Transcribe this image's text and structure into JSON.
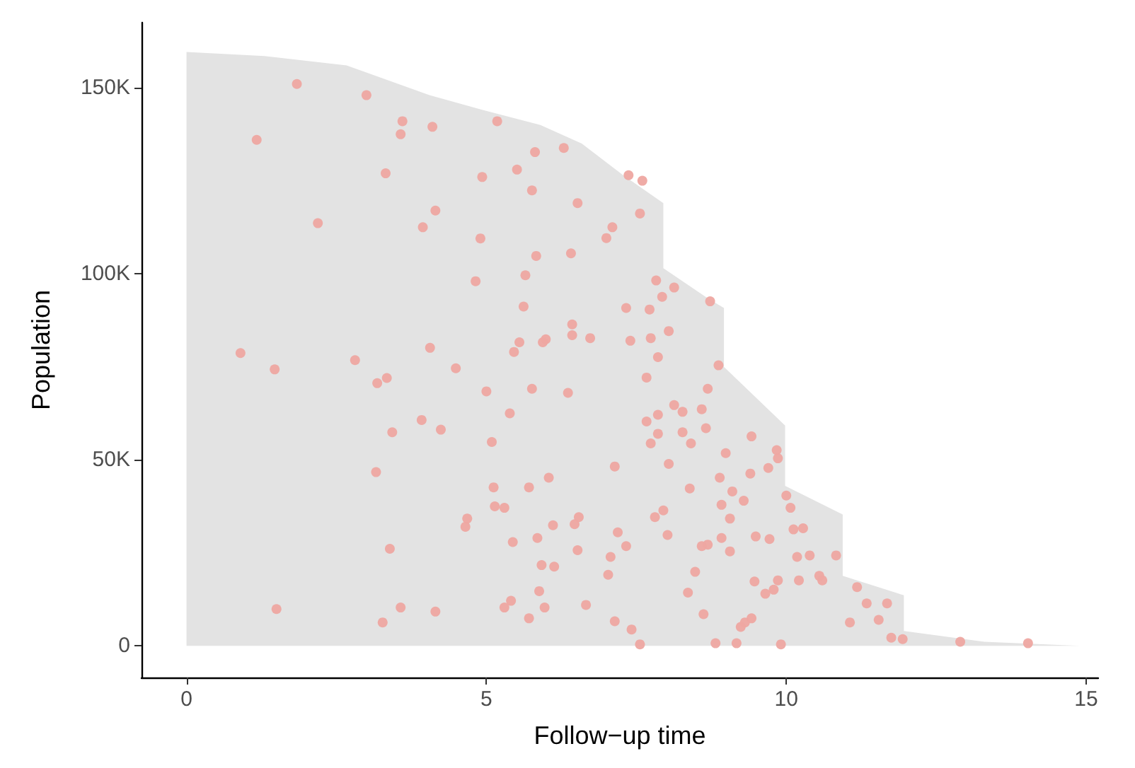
{
  "chart_data": {
    "type": "scatter",
    "xlabel": "Follow−up time",
    "ylabel": "Population",
    "xlim": [
      -0.75,
      15.2
    ],
    "ylim": [
      -8500,
      167500
    ],
    "xticks": [
      0,
      5,
      10,
      15
    ],
    "yticks": [
      0,
      {
        "value": 50000,
        "label": "50K"
      },
      {
        "value": 100000,
        "label": "100K"
      },
      {
        "value": 150000,
        "label": "150K"
      }
    ],
    "grid": false,
    "series": [
      {
        "type": "area",
        "color": "#e3e3e3",
        "x": [
          0,
          1.3,
          2.67,
          4.05,
          4.95,
          5.9,
          6.59,
          7.28,
          7.95,
          7.95,
          8.69,
          8.96,
          8.96,
          9.98,
          9.98,
          10.94,
          10.94,
          11.96,
          11.96,
          13.3,
          14.9
        ],
        "values": [
          159600,
          158500,
          156000,
          148000,
          144000,
          140000,
          135000,
          126500,
          119000,
          101500,
          93400,
          90800,
          75000,
          59200,
          43000,
          35300,
          18800,
          13600,
          4000,
          1100,
          0
        ]
      },
      {
        "color": "#eea7a1",
        "marker": "circle",
        "x": [
          1.84,
          3.0,
          1.17,
          3.6,
          3.57,
          4.1,
          5.18,
          3.32,
          4.93,
          4.15,
          3.94,
          4.9,
          4.82,
          2.19,
          0.9,
          1.47,
          2.81,
          4.06,
          4.49,
          3.18,
          3.34,
          5.0,
          3.92,
          4.24,
          3.43,
          5.09,
          3.16,
          5.12,
          5.14,
          4.68,
          4.65,
          3.39,
          1.5,
          3.57,
          4.15,
          3.27,
          5.81,
          6.29,
          5.51,
          5.76,
          7.37,
          7.6,
          6.52,
          7.56,
          7.1,
          7.0,
          5.83,
          6.41,
          5.65,
          7.83,
          8.13,
          7.93,
          8.73,
          5.62,
          7.33,
          7.72,
          6.43,
          6.43,
          8.04,
          5.55,
          5.99,
          5.94,
          6.73,
          7.4,
          7.74,
          5.46,
          7.86,
          8.87,
          7.67,
          8.69,
          5.76,
          6.36,
          8.13,
          8.27,
          8.59,
          5.39,
          7.86,
          7.67,
          7.86,
          8.27,
          8.66,
          7.74,
          8.41,
          8.99,
          7.14,
          8.04,
          8.89,
          6.04,
          5.71,
          8.39,
          9.1,
          8.92,
          9.29,
          5.3,
          9.06,
          6.54,
          6.47,
          6.11,
          7.81,
          7.95,
          7.19,
          8.02,
          8.92,
          8.59,
          8.69,
          9.06,
          5.44,
          5.85,
          6.52,
          7.33,
          7.07,
          5.92,
          6.13,
          7.03,
          8.48,
          5.88,
          8.36,
          5.41,
          5.3,
          5.97,
          6.66,
          8.62,
          5.71,
          7.14,
          7.42,
          7.56,
          8.82,
          9.17,
          9.24,
          9.31,
          9.42,
          9.84,
          9.86,
          9.7,
          9.4,
          10.0,
          10.07,
          10.12,
          10.28,
          9.49,
          9.72,
          10.18,
          10.39,
          10.83,
          9.47,
          9.86,
          10.21,
          10.55,
          10.6,
          9.65,
          9.79,
          11.18,
          11.34,
          11.68,
          11.06,
          11.54,
          11.75,
          11.94,
          9.42,
          9.91,
          12.9,
          14.03
        ],
        "values": [
          151000,
          148000,
          136000,
          141000,
          137500,
          139500,
          141000,
          127000,
          126000,
          117000,
          112500,
          109500,
          98000,
          113600,
          78700,
          74300,
          76800,
          80100,
          74600,
          70600,
          72000,
          68400,
          60700,
          58100,
          57400,
          54800,
          46700,
          42600,
          37500,
          34200,
          32000,
          26100,
          9900,
          10300,
          9200,
          6300,
          132700,
          133800,
          128000,
          122400,
          126500,
          125000,
          119000,
          116200,
          112500,
          109600,
          104800,
          105500,
          99600,
          98200,
          96300,
          93800,
          92600,
          91200,
          90800,
          90400,
          86400,
          83500,
          84600,
          81600,
          82400,
          81600,
          82700,
          82000,
          82700,
          79000,
          77600,
          75400,
          72100,
          69100,
          69100,
          68000,
          64700,
          62900,
          63600,
          62500,
          62100,
          60300,
          57000,
          57400,
          58500,
          54400,
          54400,
          51800,
          48200,
          48900,
          45200,
          45200,
          42600,
          42300,
          41500,
          37900,
          39000,
          37100,
          34200,
          34600,
          32700,
          32400,
          34600,
          36400,
          30500,
          29800,
          29000,
          26800,
          27200,
          25400,
          27900,
          29000,
          25700,
          26800,
          23900,
          21700,
          21300,
          19100,
          19900,
          14700,
          14300,
          12100,
          10300,
          10300,
          11000,
          8500,
          7400,
          6600,
          4400,
          400,
          700,
          700,
          5100,
          6300,
          56300,
          52600,
          50400,
          47800,
          46300,
          40400,
          37100,
          31300,
          31600,
          29400,
          28700,
          23900,
          24300,
          24300,
          17300,
          17600,
          17600,
          18800,
          17600,
          14000,
          15100,
          15800,
          11400,
          11400,
          6300,
          7000,
          2200,
          1800,
          7400,
          400,
          1100,
          700
        ]
      }
    ]
  }
}
